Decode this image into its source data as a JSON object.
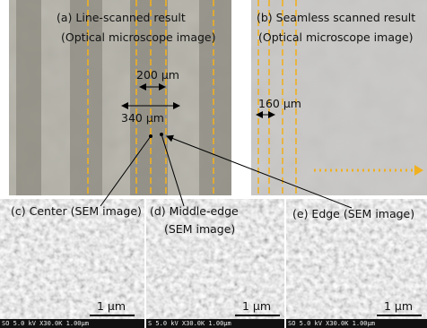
{
  "panel_a": {
    "lines": [
      "(a)  Line-scanned result",
      "(Optical microscope image)"
    ],
    "scale_1": "200 μm",
    "scale_2": "340 μm"
  },
  "panel_b": {
    "lines": [
      "(b) Seamless scanned result",
      "(Optical microscope image)"
    ],
    "scale": "160 μm"
  },
  "sem_panels": [
    {
      "lines": [
        "(c) Center (SEM image)"
      ],
      "scale_bar": "1 μm",
      "footer": "SO 5.0 kV X30.0K 1.00μm"
    },
    {
      "lines": [
        "(d) Middle-edge",
        "(SEM image)"
      ],
      "scale_bar": "1 μm",
      "footer": "S 5.0 kV X30.0K 1.00μm"
    },
    {
      "lines": [
        "(e) Edge (SEM image)"
      ],
      "scale_bar": "1 μm",
      "footer": "SO 5.0 kV X30.0K 1.00μm"
    }
  ]
}
